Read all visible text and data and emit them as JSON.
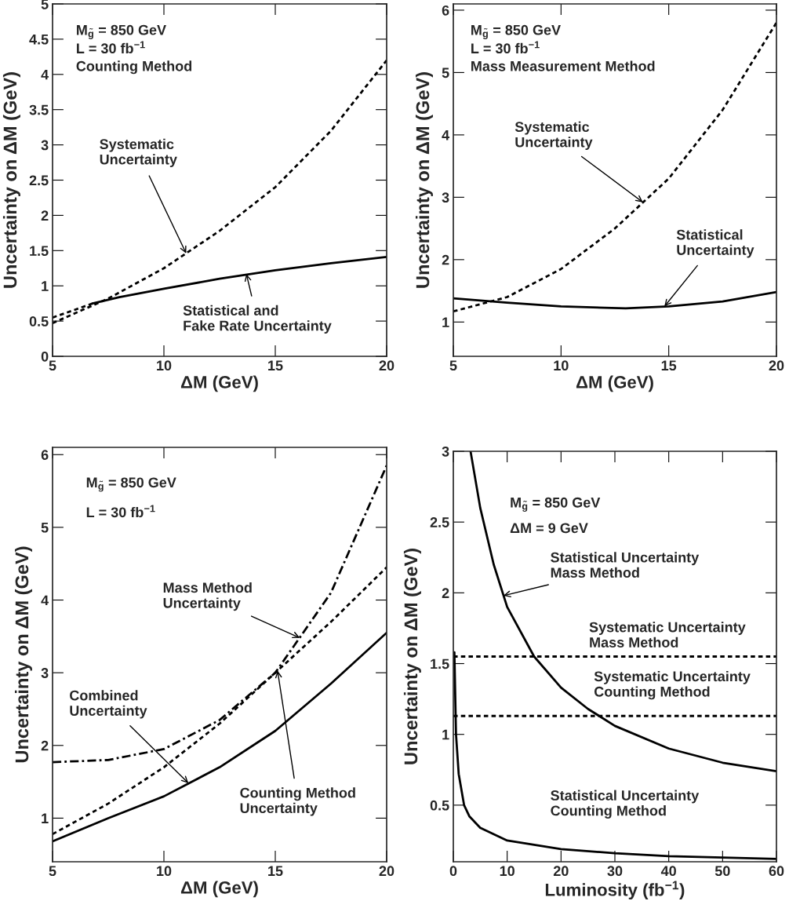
{
  "chart_data": [
    {
      "type": "line",
      "xlabel": "ΔM (GeV)",
      "ylabel": "Uncertainty on ΔM (GeV)",
      "xlim": [
        5,
        20
      ],
      "ylim": [
        0,
        5
      ],
      "xticks": [
        5,
        10,
        15,
        20
      ],
      "yticks": [
        0,
        0.5,
        1,
        1.5,
        2,
        2.5,
        3,
        3.5,
        4,
        4.5,
        5
      ],
      "grid": false,
      "legend": false,
      "series": [
        {
          "color": "#000000",
          "line_style": "dotted",
          "x": [
            5,
            7.5,
            10,
            12.5,
            15,
            17.5,
            20
          ],
          "values": [
            0.47,
            0.82,
            1.25,
            1.78,
            2.4,
            3.2,
            4.2
          ]
        },
        {
          "color": "#000000",
          "line_style": "solid",
          "x": [
            6.8,
            8,
            10,
            12.5,
            15,
            17.5,
            20
          ],
          "values": [
            0.75,
            0.84,
            0.96,
            1.1,
            1.22,
            1.32,
            1.41
          ]
        },
        {
          "color": "#000000",
          "line_style": "dotted",
          "x": [
            5,
            6,
            6.8
          ],
          "values": [
            0.55,
            0.66,
            0.75
          ]
        }
      ],
      "annotations": [
        "M$_{g̃}$ = 850 GeV",
        "L = 30 fb$^{−1}$",
        "Counting Method",
        {
          "text": "Systematic\nUncertainty",
          "x": 11,
          "y": 1.46
        },
        {
          "text": "Statistical and\nFake Rate Uncertainty",
          "x": 13.7,
          "y": 1.17
        }
      ]
    },
    {
      "type": "line",
      "xlabel": "ΔM (GeV)",
      "ylabel": "Uncertainty on ΔM (GeV)",
      "xlim": [
        5,
        20
      ],
      "ylim": [
        0.45,
        6.1
      ],
      "xticks": [
        5,
        10,
        15,
        20
      ],
      "yticks": [
        1,
        2,
        3,
        4,
        5,
        6
      ],
      "grid": false,
      "legend": false,
      "series": [
        {
          "color": "#000000",
          "line_style": "dotted",
          "x": [
            5,
            7.5,
            10,
            12.5,
            15,
            17.5,
            20
          ],
          "values": [
            1.17,
            1.4,
            1.85,
            2.5,
            3.3,
            4.4,
            5.8
          ]
        },
        {
          "color": "#000000",
          "line_style": "solid",
          "x": [
            5,
            7.5,
            10,
            13,
            15,
            17.5,
            20
          ],
          "values": [
            1.38,
            1.31,
            1.25,
            1.22,
            1.25,
            1.33,
            1.48
          ]
        }
      ],
      "annotations": [
        "M$_{g̃}$ = 850 GeV",
        "L = 30 fb$^{−1}$",
        "Mass Measurement Method",
        {
          "text": "Systematic\nUncertainty",
          "x": 13.8,
          "y": 2.92
        },
        {
          "text": "Statistical\nUncertainty",
          "x": 14.8,
          "y": 1.25
        }
      ]
    },
    {
      "type": "line",
      "xlabel": "ΔM (GeV)",
      "ylabel": "Uncertainty on ΔM (GeV)",
      "xlim": [
        5,
        20
      ],
      "ylim": [
        0.4,
        6.1
      ],
      "xticks": [
        5,
        10,
        15,
        20
      ],
      "yticks": [
        1,
        2,
        3,
        4,
        5,
        6
      ],
      "grid": false,
      "legend": false,
      "series": [
        {
          "color": "#000000",
          "line_style": "dashdot",
          "x": [
            5,
            7.5,
            10,
            12.5,
            15,
            17.5,
            20
          ],
          "values": [
            1.77,
            1.8,
            1.95,
            2.35,
            3.0,
            4.1,
            5.85
          ]
        },
        {
          "color": "#000000",
          "line_style": "dotted",
          "x": [
            5,
            7.5,
            10,
            12.5,
            15,
            17.5,
            20
          ],
          "values": [
            0.78,
            1.2,
            1.7,
            2.3,
            3.0,
            3.7,
            4.45
          ]
        },
        {
          "color": "#000000",
          "line_style": "solid",
          "x": [
            5,
            7.5,
            10,
            12.5,
            15,
            17.5,
            20
          ],
          "values": [
            0.68,
            1.0,
            1.3,
            1.7,
            2.2,
            2.85,
            3.55
          ]
        }
      ],
      "annotations": [
        "M$_{g̃}$ = 850 GeV",
        "L = 30 fb$^{−1}$",
        {
          "text": "Mass Method\nUncertainty",
          "x": 16.1,
          "y": 3.48
        },
        {
          "text": "Combined\nUncertainty",
          "x": 11.1,
          "y": 1.48
        },
        {
          "text": "Counting Method\nUncertainty",
          "x": 15.1,
          "y": 3.03
        }
      ]
    },
    {
      "type": "line",
      "xlabel": "Luminosity (fb$^{−1}$)",
      "ylabel": "Uncertainty on ΔM (GeV)",
      "xlim": [
        0,
        60
      ],
      "ylim": [
        0.1,
        3
      ],
      "xticks": [
        0,
        10,
        20,
        30,
        40,
        50,
        60
      ],
      "yticks": [
        0.5,
        1,
        1.5,
        2,
        2.5,
        3
      ],
      "grid": false,
      "legend": false,
      "series": [
        {
          "color": "#000000",
          "line_style": "solid",
          "x": [
            3.2,
            5,
            7.5,
            10,
            15,
            20,
            25,
            30,
            40,
            50,
            60
          ],
          "values": [
            3.0,
            2.6,
            2.2,
            1.9,
            1.55,
            1.33,
            1.18,
            1.06,
            0.9,
            0.8,
            0.74
          ]
        },
        {
          "color": "#000000",
          "line_style": "solid",
          "x": [
            0.2,
            0.5,
            1,
            2,
            3,
            5,
            10,
            20,
            30,
            40,
            50,
            60
          ],
          "values": [
            1.58,
            1.0,
            0.72,
            0.5,
            0.42,
            0.34,
            0.25,
            0.19,
            0.16,
            0.14,
            0.13,
            0.12
          ]
        }
      ],
      "ref_lines": [
        {
          "axis": "y",
          "value": 1.55,
          "label": "Systematic Uncertainty\nMass Method",
          "line_style": "dotted"
        },
        {
          "axis": "y",
          "value": 1.13,
          "label": "Systematic Uncertainty\nCounting Method",
          "line_style": "dotted"
        }
      ],
      "annotations": [
        "M$_{g̃}$ = 850 GeV",
        "ΔM = 9 GeV",
        {
          "text": "Statistical Uncertainty\nMass Method",
          "x": 9.3,
          "y": 1.98
        },
        "Statistical Uncertainty\nCounting Method"
      ]
    }
  ]
}
